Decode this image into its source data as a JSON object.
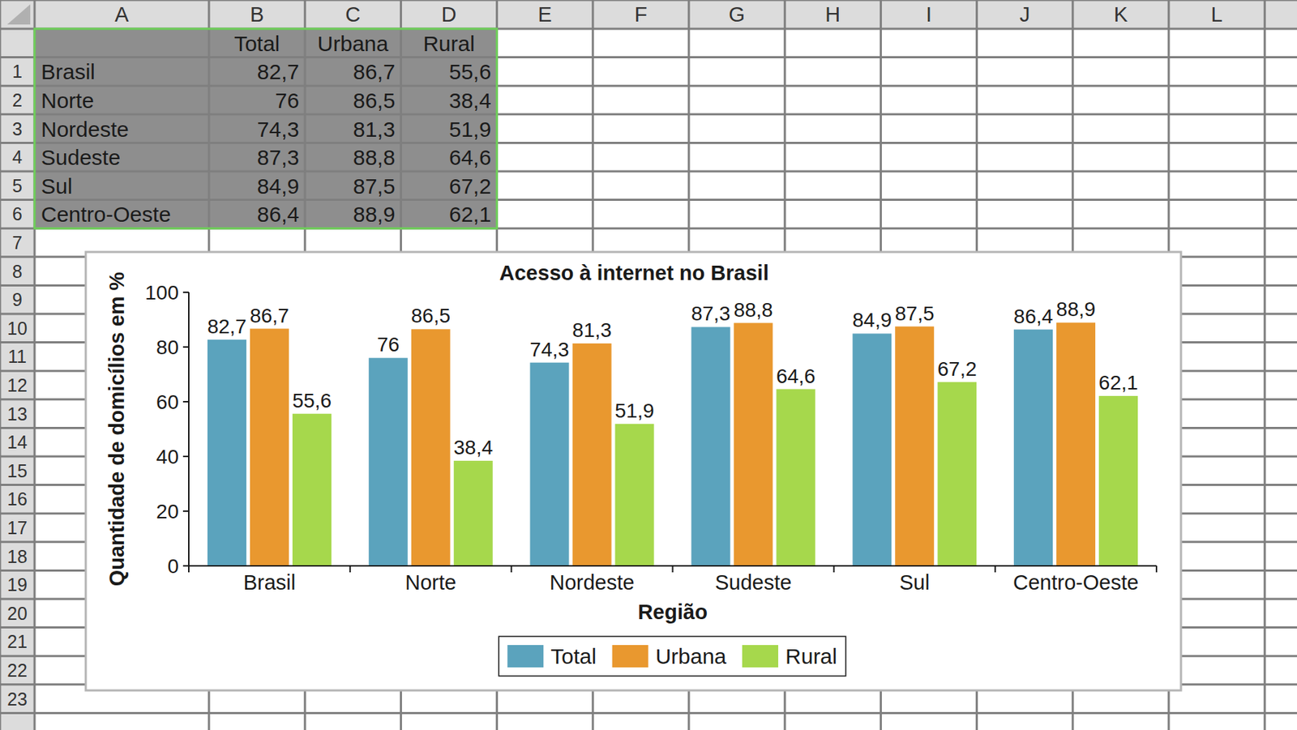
{
  "chart_data": {
    "type": "bar",
    "title": "Acesso à internet no Brasil",
    "x_label": "Região",
    "y_label": "Quantidade de domicílios em %",
    "categories": [
      "Brasil",
      "Norte",
      "Nordeste",
      "Sudeste",
      "Sul",
      "Centro-Oeste"
    ],
    "series": [
      {
        "name": "Total",
        "color": "#5ba3bd",
        "values": [
          82.7,
          76,
          74.3,
          87.3,
          84.9,
          86.4
        ],
        "value_labels": [
          "82,7",
          "76",
          "74,3",
          "87,3",
          "84,9",
          "86,4"
        ]
      },
      {
        "name": "Urbana",
        "color": "#e9982f",
        "values": [
          86.7,
          86.5,
          81.3,
          88.8,
          87.5,
          88.9
        ],
        "value_labels": [
          "86,7",
          "86,5",
          "81,3",
          "88,8",
          "87,5",
          "88,9"
        ]
      },
      {
        "name": "Rural",
        "color": "#a6d84c",
        "values": [
          55.6,
          38.4,
          51.9,
          64.6,
          67.2,
          62.1
        ],
        "value_labels": [
          "55,6",
          "38,4",
          "51,9",
          "64,6",
          "67,2",
          "62,1"
        ]
      }
    ],
    "ylim": [
      0,
      100
    ],
    "yticks": [
      0,
      20,
      40,
      60,
      80,
      100
    ],
    "grid": false,
    "legend": "bottom",
    "data_labels": true
  },
  "spreadsheet": {
    "columns": [
      "A",
      "B",
      "C",
      "D",
      "E",
      "F",
      "G",
      "H",
      "I",
      "J",
      "K",
      "L"
    ],
    "rows": [
      1,
      2,
      3,
      4,
      5,
      6,
      7,
      8,
      9,
      10,
      11,
      12,
      13,
      14,
      15,
      16,
      17,
      18,
      19,
      20,
      21,
      22,
      23
    ],
    "table": {
      "header": [
        "Total",
        "Urbana",
        "Rural"
      ],
      "rows": [
        [
          "Brasil",
          "82,7",
          "86,7",
          "55,6"
        ],
        [
          "Norte",
          "76",
          "86,5",
          "38,4"
        ],
        [
          "Nordeste",
          "74,3",
          "81,3",
          "51,9"
        ],
        [
          "Sudeste",
          "87,3",
          "88,8",
          "64,6"
        ],
        [
          "Sul",
          "84,9",
          "87,5",
          "67,2"
        ],
        [
          "Centro-Oeste",
          "86,4",
          "88,9",
          "62,1"
        ]
      ]
    }
  }
}
